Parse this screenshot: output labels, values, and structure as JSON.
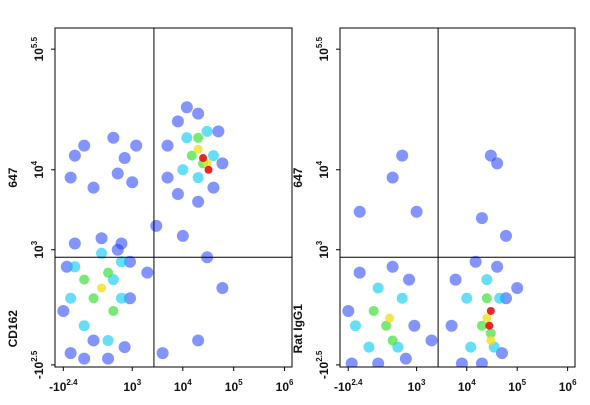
{
  "chart_data": [
    {
      "type": "scatter",
      "scale": "arcsinh",
      "cofactor": 230,
      "ylabel": [
        "CD162",
        "647"
      ],
      "xlim": [
        -400,
        1400000
      ],
      "ylim": [
        -340,
        580000
      ],
      "xticks": [
        {
          "value": -251,
          "label": "-10",
          "exponent": "2.4"
        },
        {
          "value": 1000,
          "label": "10",
          "exponent": "3"
        },
        {
          "value": 10000,
          "label": "10",
          "exponent": "4"
        },
        {
          "value": 100000,
          "label": "10",
          "exponent": "5"
        },
        {
          "value": 1000000,
          "label": "10",
          "exponent": "6"
        }
      ],
      "yticks": [
        {
          "value": -316,
          "label": "-10",
          "exponent": "2.5"
        },
        {
          "value": 1000,
          "label": "10",
          "exponent": "3"
        },
        {
          "value": 10000,
          "label": "10",
          "exponent": "4"
        },
        {
          "value": 316228,
          "label": "10",
          "exponent": "5.5"
        }
      ],
      "gate": {
        "x": 2700,
        "y": 800
      },
      "series": [
        {
          "color": "#1f3cff",
          "x": [
            -150,
            0,
            300,
            700,
            900,
            900,
            600,
            200,
            -100,
            -200,
            -250,
            100,
            500,
            -150,
            100,
            500,
            1000,
            0,
            400,
            1200,
            -100,
            700,
            5000,
            8000,
            20000,
            40000,
            60000,
            50000,
            20000,
            8000,
            5000,
            12000,
            3000,
            10000,
            30000,
            60000,
            2000,
            20000,
            4000
          ],
          "values": [
            -200,
            -250,
            -250,
            -150,
            200,
            700,
            1200,
            1400,
            1200,
            600,
            100,
            -100,
            1000,
            8000,
            6000,
            9000,
            7000,
            20000,
            25000,
            20000,
            15000,
            14000,
            8000,
            5000,
            4000,
            6000,
            12000,
            30000,
            50000,
            40000,
            20000,
            60000,
            2000,
            1500,
            800,
            300,
            500,
            -100,
            -200
          ]
        },
        {
          "color": "#00c8f0",
          "x": [
            0,
            300,
            600,
            600,
            200,
            -100,
            -150,
            400,
            10000,
            20000,
            40000,
            30000,
            12000
          ],
          "values": [
            0,
            -100,
            200,
            700,
            900,
            600,
            200,
            400,
            10000,
            8000,
            15000,
            30000,
            25000
          ]
        },
        {
          "color": "#3ee03a",
          "x": [
            100,
            300,
            400,
            0,
            15000,
            25000,
            20000
          ],
          "values": [
            200,
            500,
            100,
            400,
            15000,
            12000,
            25000
          ]
        },
        {
          "color": "#f0e020",
          "x": [
            200,
            20000,
            30000
          ],
          "values": [
            300,
            18000,
            12000
          ]
        },
        {
          "color": "#e81010",
          "x": [
            25000,
            32000
          ],
          "values": [
            14000,
            10000
          ]
        }
      ]
    },
    {
      "type": "scatter",
      "scale": "arcsinh",
      "cofactor": 230,
      "ylabel": [
        "Rat IgG1",
        "647"
      ],
      "xlim": [
        -400,
        1400000
      ],
      "ylim": [
        -340,
        580000
      ],
      "xticks": [
        {
          "value": -251,
          "label": "-10",
          "exponent": "2.4"
        },
        {
          "value": 1000,
          "label": "10",
          "exponent": "3"
        },
        {
          "value": 10000,
          "label": "10",
          "exponent": "4"
        },
        {
          "value": 100000,
          "label": "10",
          "exponent": "5"
        },
        {
          "value": 1000000,
          "label": "10",
          "exponent": "6"
        }
      ],
      "yticks": [
        {
          "value": -316,
          "label": "-10",
          "exponent": "2.5"
        },
        {
          "value": 1000,
          "label": "10",
          "exponent": "3"
        },
        {
          "value": 10000,
          "label": "10",
          "exponent": "4"
        },
        {
          "value": 316228,
          "label": "10",
          "exponent": "5.5"
        }
      ],
      "gate": {
        "x": 2700,
        "y": 800
      },
      "series": [
        {
          "color": "#1f3cff",
          "x": [
            -200,
            100,
            600,
            900,
            700,
            300,
            -100,
            -250,
            8000,
            20000,
            50000,
            60000,
            40000,
            15000,
            6000,
            5000,
            300,
            1000,
            30000,
            40000,
            20000,
            60000,
            100000,
            2000,
            500,
            -100
          ],
          "values": [
            -300,
            -300,
            -250,
            0,
            400,
            600,
            500,
            100,
            -300,
            -300,
            -200,
            200,
            600,
            700,
            400,
            0,
            8000,
            3000,
            15000,
            12000,
            2500,
            1500,
            300,
            -100,
            15000,
            3000
          ]
        },
        {
          "color": "#00c8f0",
          "x": [
            0,
            400,
            500,
            100,
            -150,
            12000,
            35000,
            45000,
            25000,
            10000
          ],
          "values": [
            -150,
            -150,
            200,
            300,
            0,
            -150,
            -150,
            200,
            400,
            200
          ]
        },
        {
          "color": "#3ee03a",
          "x": [
            200,
            300,
            50,
            20000,
            30000,
            25000
          ],
          "values": [
            0,
            -100,
            100,
            0,
            -50,
            200
          ]
        },
        {
          "color": "#f0e020",
          "x": [
            250,
            25000,
            30000
          ],
          "values": [
            50,
            50,
            -100
          ]
        },
        {
          "color": "#e81010",
          "x": [
            28000,
            30000
          ],
          "values": [
            0,
            100
          ]
        }
      ]
    }
  ]
}
